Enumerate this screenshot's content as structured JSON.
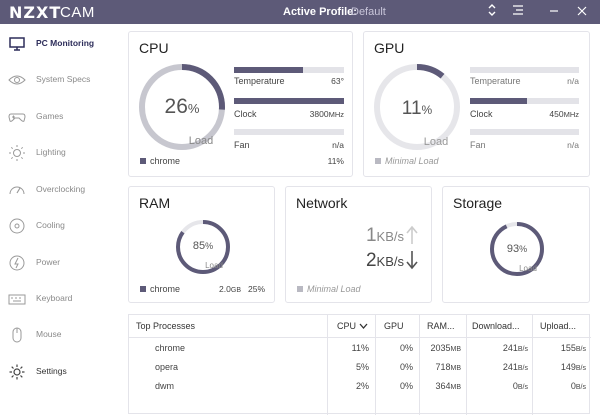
{
  "titlebar": {
    "logo_main": "NZXT",
    "logo_sub": "CAM",
    "profile_label": "Active Profile:",
    "profile_value": "Default"
  },
  "sidebar": {
    "items": [
      {
        "label": "PC Monitoring",
        "icon": "monitor-icon",
        "active": true
      },
      {
        "label": "System Specs",
        "icon": "eye-icon",
        "active": false
      },
      {
        "label": "Games",
        "icon": "gamepad-icon",
        "active": false
      },
      {
        "label": "Lighting",
        "icon": "sun-icon",
        "active": false
      },
      {
        "label": "Overclocking",
        "icon": "speedometer-icon",
        "active": false
      },
      {
        "label": "Cooling",
        "icon": "cooling-icon",
        "active": false
      },
      {
        "label": "Power",
        "icon": "power-icon",
        "active": false
      },
      {
        "label": "Keyboard",
        "icon": "keyboard-icon",
        "active": false
      },
      {
        "label": "Mouse",
        "icon": "mouse-icon",
        "active": false
      },
      {
        "label": "Settings",
        "icon": "gear-icon",
        "active": false
      }
    ]
  },
  "cpu": {
    "title": "CPU",
    "load_value": "26",
    "load_unit": "%",
    "load_label": "Load",
    "load_fraction": 0.26,
    "temperature_label": "Temperature",
    "temperature_value": "63°",
    "temperature_fraction": 0.63,
    "clock_label": "Clock",
    "clock_value": "3800",
    "clock_unit": "MHz",
    "clock_fraction": 1.0,
    "fan_label": "Fan",
    "fan_value": "n/a",
    "fan_fraction": 0,
    "top_process": "chrome",
    "top_process_value": "11%"
  },
  "gpu": {
    "title": "GPU",
    "load_value": "11",
    "load_unit": "%",
    "load_label": "Load",
    "load_fraction": 0.11,
    "temperature_label": "Temperature",
    "temperature_value": "n/a",
    "temperature_fraction": 0,
    "clock_label": "Clock",
    "clock_value": "450",
    "clock_unit": "MHz",
    "clock_fraction": 0.52,
    "fan_label": "Fan",
    "fan_value": "n/a",
    "fan_fraction": 0,
    "status": "Minimal Load"
  },
  "ram": {
    "title": "RAM",
    "load_value": "85",
    "load_unit": "%",
    "load_label": "Load",
    "load_fraction": 0.85,
    "top_process": "chrome",
    "top_process_mem": "2.0",
    "top_process_mem_unit": "GB",
    "top_process_pct": "25%"
  },
  "network": {
    "title": "Network",
    "upload_value": "1",
    "upload_unit": "KB/s",
    "download_value": "2",
    "download_unit": "KB/s",
    "status": "Minimal Load"
  },
  "storage": {
    "title": "Storage",
    "load_value": "93",
    "load_unit": "%",
    "load_label": "Load",
    "load_fraction": 0.93
  },
  "processes": {
    "headers": [
      "Top Processes",
      "CPU",
      "GPU",
      "RAM...",
      "Download...",
      "Upload..."
    ],
    "rows": [
      {
        "name": "chrome",
        "cpu": "11%",
        "gpu": "0%",
        "ram": "2035",
        "ram_unit": "MB",
        "download": "241",
        "download_unit": "B/s",
        "upload": "155",
        "upload_unit": "B/s"
      },
      {
        "name": "opera",
        "cpu": "5%",
        "gpu": "0%",
        "ram": "718",
        "ram_unit": "MB",
        "download": "241",
        "download_unit": "B/s",
        "upload": "149",
        "upload_unit": "B/s"
      },
      {
        "name": "dwm",
        "cpu": "2%",
        "gpu": "0%",
        "ram": "364",
        "ram_unit": "MB",
        "download": "0",
        "download_unit": "B/s",
        "upload": "0",
        "upload_unit": "B/s"
      }
    ]
  },
  "colors": {
    "accent": "#5d5a78",
    "track": "#e3e3e8",
    "muted": "#c7c7cf"
  }
}
